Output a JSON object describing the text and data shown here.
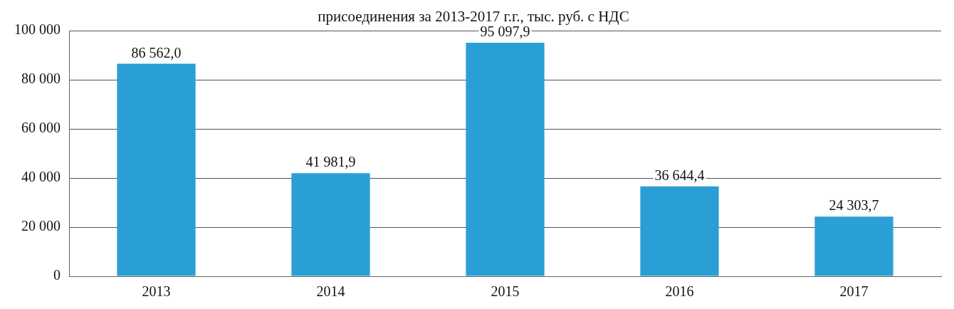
{
  "chart_data": {
    "type": "bar",
    "title": "присоединения за 2013-2017 г.г., тыс. руб. с НДС",
    "categories": [
      "2013",
      "2014",
      "2015",
      "2016",
      "2017"
    ],
    "values": [
      86562.0,
      41981.9,
      95097.9,
      36644.4,
      24303.7
    ],
    "value_labels": [
      "86 562,0",
      "41 981,9",
      "95 097,9",
      "36 644,4",
      "24 303,7"
    ],
    "color": "#2a9fd6",
    "ylim": [
      0,
      100000
    ],
    "yticks": [
      {
        "value": 0,
        "label": "0"
      },
      {
        "value": 20000,
        "label": "20 000"
      },
      {
        "value": 40000,
        "label": "40 000"
      },
      {
        "value": 60000,
        "label": "60 000"
      },
      {
        "value": 80000,
        "label": "80 000"
      },
      {
        "value": 100000,
        "label": "100 000"
      }
    ],
    "grid": "y",
    "legend": false
  }
}
